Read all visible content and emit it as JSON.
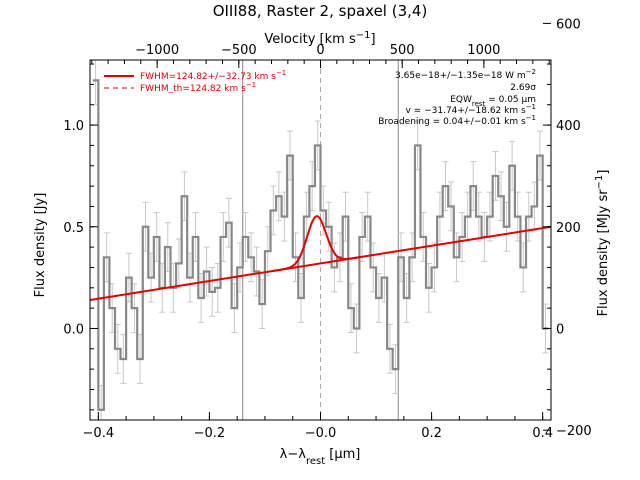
{
  "chart_data": {
    "type": "line",
    "title": "OIII88, Raster 2, spaxel (3,4)",
    "xlabel": "λ−λ_rest [μm]",
    "ylabel_left": "Flux density [Jy]",
    "ylabel_right": "Flux density [MJy sr^−1]",
    "xlabel_top": "Velocity [km s^−1]",
    "xlim": [
      -0.415,
      0.415
    ],
    "ylim": [
      -0.45,
      1.32
    ],
    "xticks": [
      -0.4,
      -0.2,
      0.0,
      0.2,
      0.4
    ],
    "xtick_labels": [
      "−0.4",
      "−0.2",
      "−0.0",
      "0.2",
      "0.4"
    ],
    "yticks": [
      0.0,
      0.5,
      1.0
    ],
    "ytick_labels": [
      "0.0",
      "0.5",
      "1.0"
    ],
    "top_ticks": [
      -1000,
      -500,
      0,
      500,
      1000
    ],
    "top_tick_labels": [
      "−1000",
      "−500",
      "0",
      "500",
      "1000"
    ],
    "top_velocity_per_micron": 3400,
    "right_ticks": [
      -200,
      0,
      200,
      400,
      600
    ],
    "right_tick_labels": [
      "−200",
      "0",
      "200",
      "400",
      "600"
    ],
    "right_scale_per_jy": 400,
    "vertical_lines": [
      -0.14,
      0.14
    ],
    "zero_line": 0.0,
    "spectrum": {
      "name": "data",
      "color": "#888888",
      "x": [
        -0.405,
        -0.395,
        -0.385,
        -0.375,
        -0.365,
        -0.355,
        -0.345,
        -0.335,
        -0.325,
        -0.315,
        -0.305,
        -0.295,
        -0.285,
        -0.275,
        -0.265,
        -0.255,
        -0.245,
        -0.235,
        -0.225,
        -0.215,
        -0.205,
        -0.195,
        -0.185,
        -0.175,
        -0.165,
        -0.155,
        -0.145,
        -0.135,
        -0.125,
        -0.115,
        -0.105,
        -0.095,
        -0.085,
        -0.075,
        -0.065,
        -0.055,
        -0.045,
        -0.035,
        -0.025,
        -0.015,
        -0.005,
        0.005,
        0.015,
        0.025,
        0.035,
        0.045,
        0.055,
        0.065,
        0.075,
        0.085,
        0.095,
        0.105,
        0.115,
        0.125,
        0.135,
        0.145,
        0.155,
        0.165,
        0.175,
        0.185,
        0.195,
        0.205,
        0.215,
        0.225,
        0.235,
        0.245,
        0.255,
        0.265,
        0.275,
        0.285,
        0.295,
        0.305,
        0.315,
        0.325,
        0.335,
        0.345,
        0.355,
        0.365,
        0.375,
        0.385,
        0.395,
        0.405
      ],
      "y": [
        1.22,
        -0.4,
        0.35,
        0.1,
        -0.1,
        -0.15,
        0.25,
        0.1,
        -0.15,
        0.5,
        0.25,
        0.45,
        0.2,
        0.4,
        0.2,
        0.32,
        0.65,
        0.25,
        0.45,
        0.15,
        0.28,
        0.18,
        0.2,
        0.45,
        0.52,
        0.1,
        0.3,
        0.45,
        0.35,
        0.28,
        0.12,
        0.38,
        0.58,
        0.65,
        0.55,
        0.85,
        0.35,
        0.15,
        0.55,
        0.7,
        0.9,
        0.58,
        0.5,
        0.3,
        0.35,
        0.55,
        0.1,
        0.0,
        0.45,
        0.55,
        0.3,
        0.15,
        0.25,
        -0.1,
        -0.2,
        0.35,
        0.15,
        0.35,
        0.9,
        0.45,
        0.2,
        0.3,
        0.55,
        0.7,
        0.6,
        0.35,
        0.45,
        0.55,
        0.7,
        0.55,
        0.45,
        0.55,
        0.75,
        0.65,
        0.5,
        0.8,
        0.55,
        0.3,
        0.55,
        0.6,
        0.85,
        0.0
      ],
      "err": 0.12
    },
    "continuum": {
      "name": "continuum",
      "color": "#e00000",
      "x": [
        -0.415,
        0.415
      ],
      "y": [
        0.14,
        0.5
      ]
    },
    "gaussian_fit": {
      "name": "fit",
      "color": "#e00000",
      "center": -0.007,
      "amplitude": 0.235,
      "sigma": 0.017
    },
    "legend": [
      {
        "label": "FWHM=124.82+/−32.73 km s^−1",
        "style": "solid",
        "color": "#e00000"
      },
      {
        "label": "FWHM_th=124.82 km s^−1",
        "style": "dashed",
        "color": "#e00000"
      }
    ],
    "annotations": [
      "3.65e−18+/−1.35e−18 W m^−2",
      "2.69σ",
      "EQW_rest = 0.05 μm",
      "v = −31.74+/−18.62 km s^−1",
      "Broadening = 0.04+/−0.01 km s^−1"
    ],
    "legend_position": "top-left",
    "annotation_position": "top-right",
    "grid": false
  }
}
